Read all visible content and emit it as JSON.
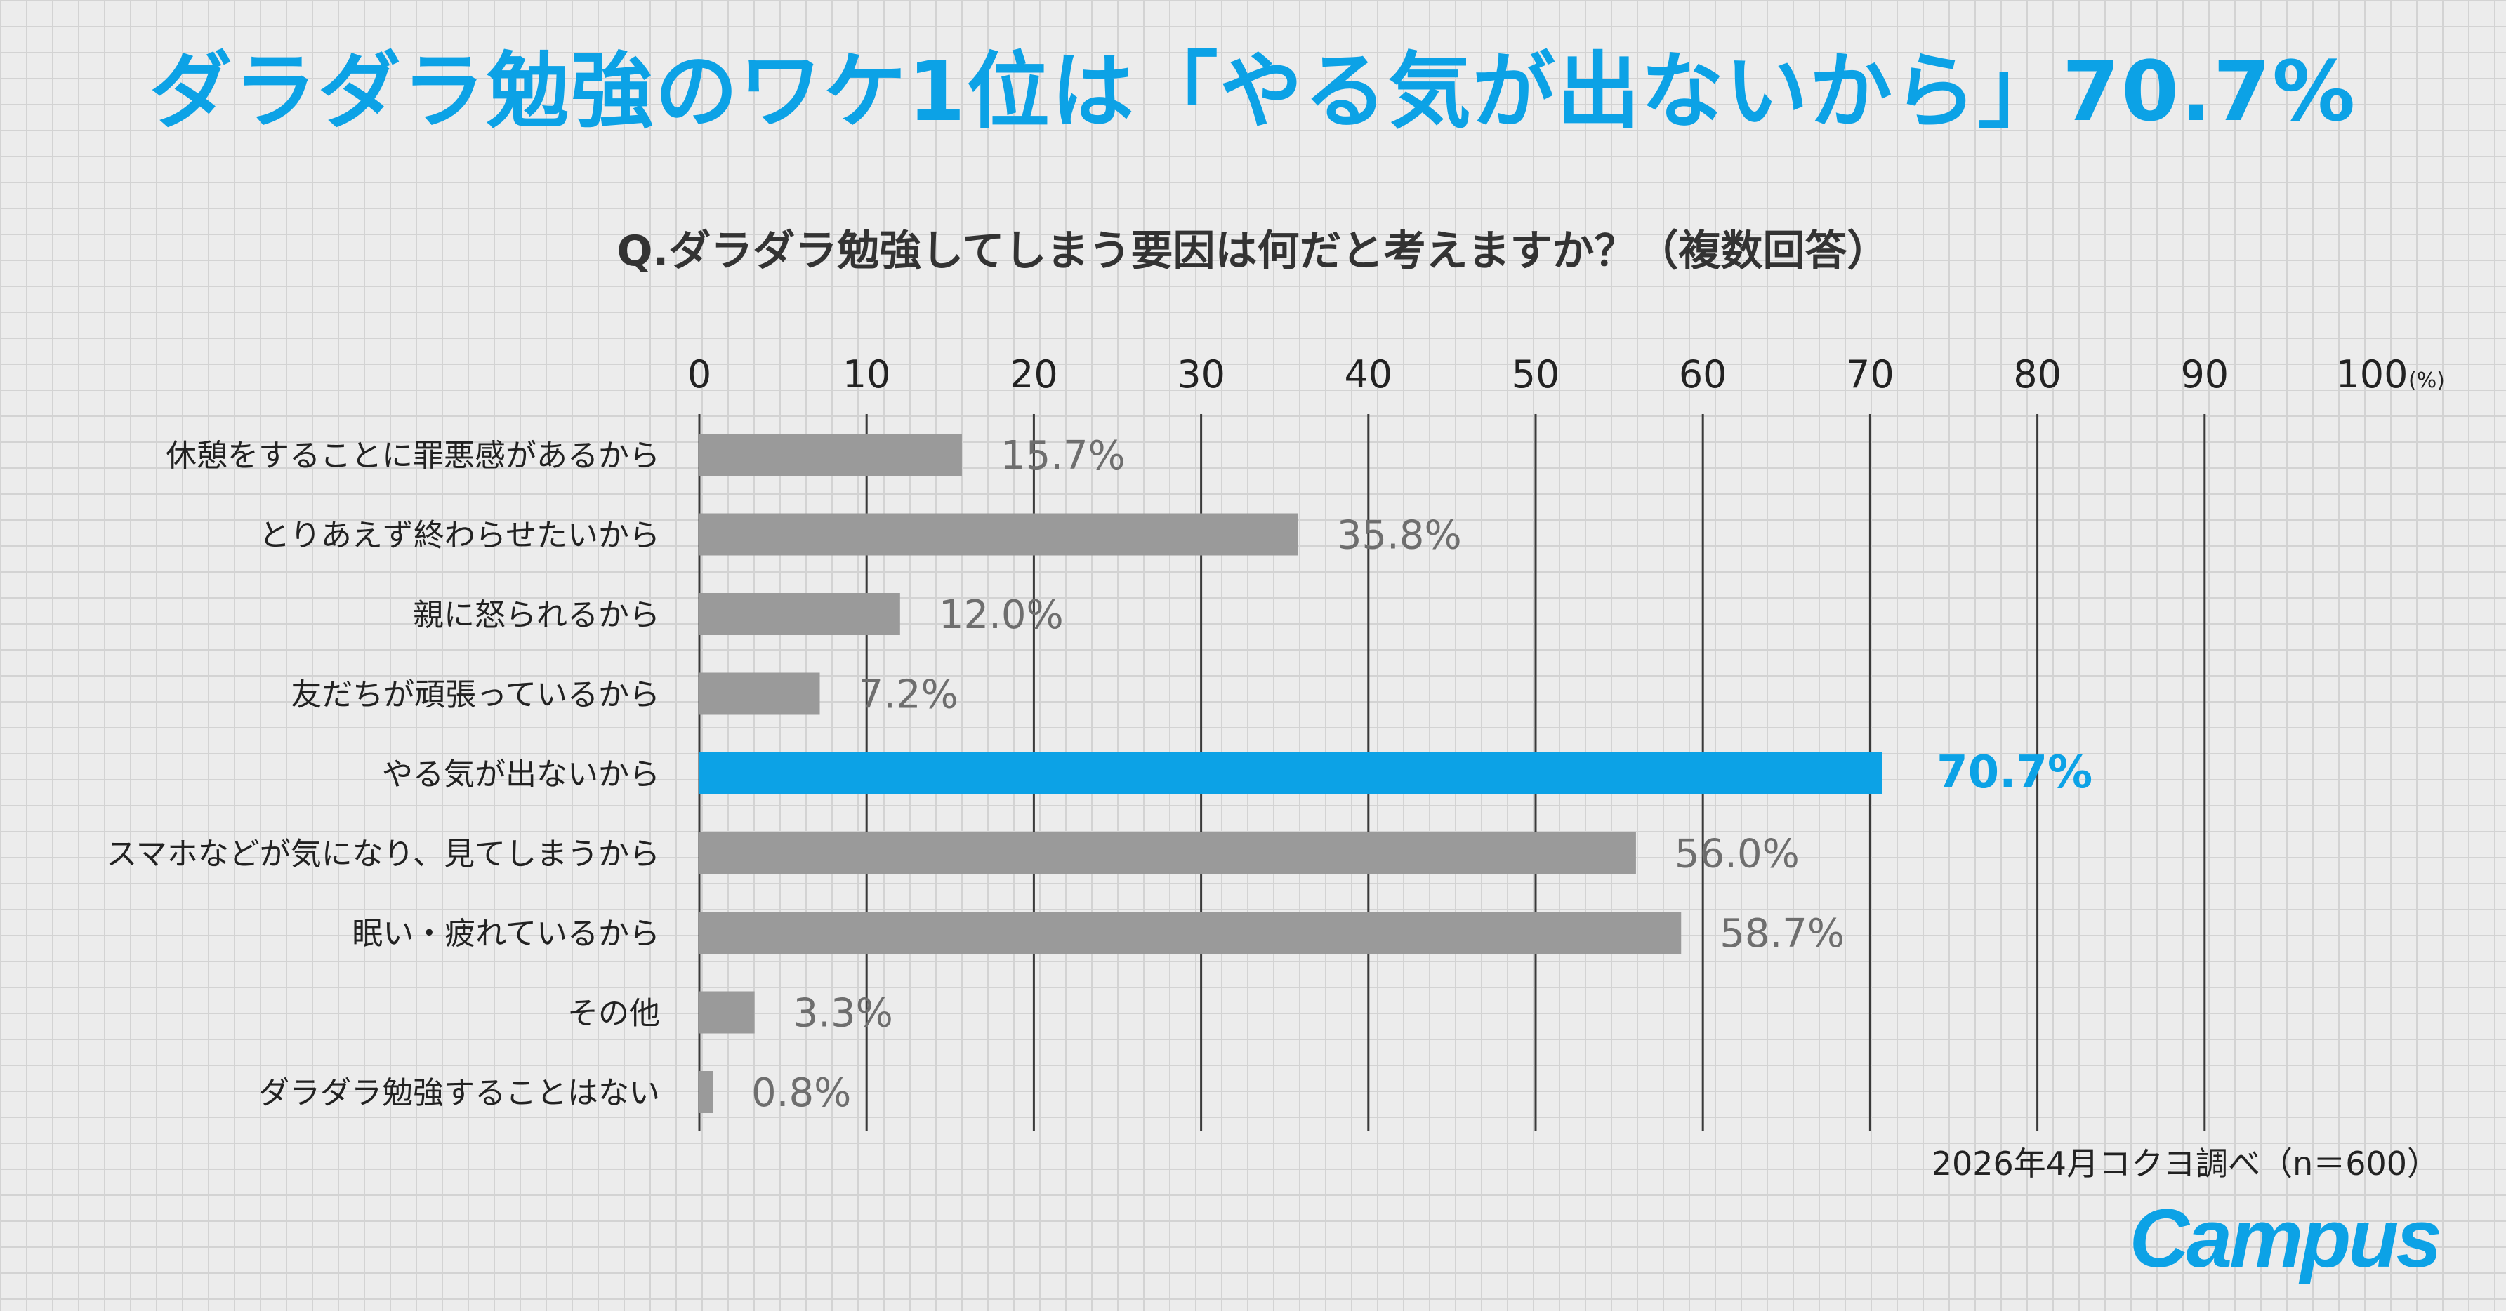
{
  "header": {
    "title": "ダラダラ勉強のワケ1位は「やる気が出ないから」70.7%",
    "question": "Q.ダラダラ勉強してしまう要因は何だと考えますか？（複数回答）"
  },
  "chart_data": {
    "type": "bar",
    "orientation": "horizontal",
    "categories": [
      "休憩をすることに罪悪感があるから",
      "とりあえず終わらせたいから",
      "親に怒られるから",
      "友だちが頑張っているから",
      "やる気が出ないから",
      "スマホなどが気になり、見てしまうから",
      "眠い・疲れているから",
      "その他",
      "ダラダラ勉強することはない"
    ],
    "values": [
      15.7,
      35.8,
      12.0,
      7.2,
      70.7,
      56.0,
      58.7,
      3.3,
      0.8
    ],
    "value_labels": [
      "15.7%",
      "35.8%",
      "12.0%",
      "7.2%",
      "70.7%",
      "56.0%",
      "58.7%",
      "3.3%",
      "0.8%"
    ],
    "highlight_index": 4,
    "xlim": [
      0,
      100
    ],
    "xticks": [
      0,
      10,
      20,
      30,
      40,
      50,
      60,
      70,
      80,
      90,
      100
    ],
    "x_unit": "(%)",
    "grid": true,
    "colors": {
      "bar": "#9a9a9a",
      "highlight": "#0ca2e6",
      "label": "#6e6e6e",
      "gridline": "#3a3a3a"
    }
  },
  "footer": {
    "note": "2026年4月コクヨ調べ（n＝600）",
    "brand": "Campus"
  }
}
